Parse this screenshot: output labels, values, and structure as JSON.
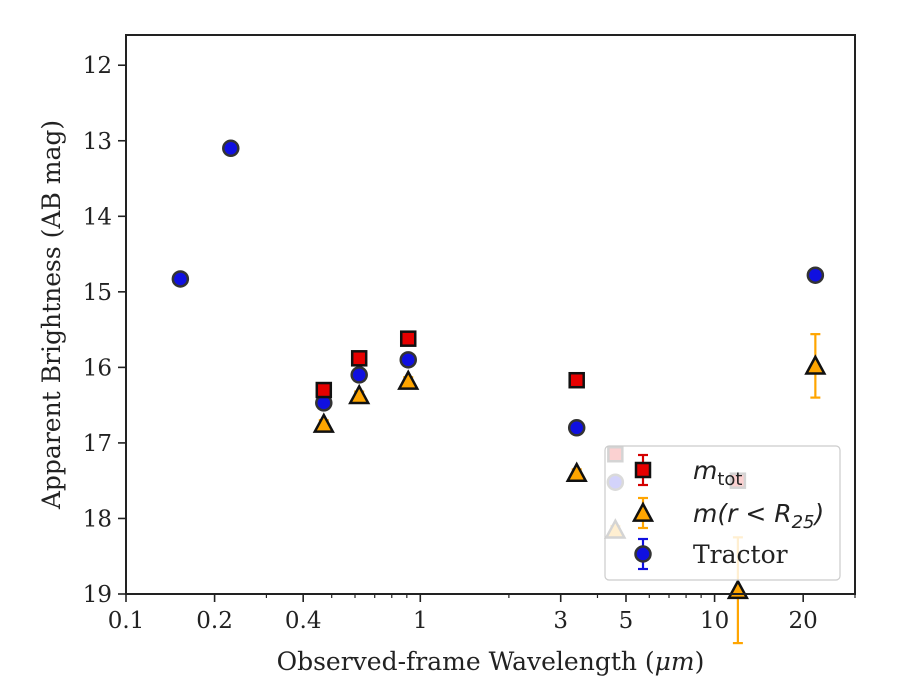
{
  "chart_data": {
    "type": "scatter",
    "title": "",
    "xlabel": "Observed-frame Wavelength (",
    "xlabel_unit": "μm",
    "ylabel": "Apparent Brightness (AB mag)",
    "xscale": "log",
    "xlim": [
      0.1,
      30
    ],
    "ylim": [
      19,
      11.6
    ],
    "y_inverted": true,
    "grid": false,
    "legend_position": "lower-right",
    "x_ticks": [
      {
        "value": 0.1,
        "label": "0.1"
      },
      {
        "value": 0.2,
        "label": "0.2"
      },
      {
        "value": 0.4,
        "label": "0.4"
      },
      {
        "value": 1,
        "label": "1"
      },
      {
        "value": 3,
        "label": "3"
      },
      {
        "value": 5,
        "label": "5"
      },
      {
        "value": 10,
        "label": "10"
      },
      {
        "value": 20,
        "label": "20"
      }
    ],
    "y_ticks": [
      {
        "value": 12,
        "label": "12"
      },
      {
        "value": 13,
        "label": "13"
      },
      {
        "value": 14,
        "label": "14"
      },
      {
        "value": 15,
        "label": "15"
      },
      {
        "value": 16,
        "label": "16"
      },
      {
        "value": 17,
        "label": "17"
      },
      {
        "value": 18,
        "label": "18"
      },
      {
        "value": 19,
        "label": "19"
      }
    ],
    "series": [
      {
        "name": "m_tot",
        "legend_main": "m",
        "legend_sub": "tot",
        "marker": "square",
        "color": "#e60000",
        "error_color": "#d40000",
        "points": [
          {
            "x": 0.47,
            "y": 16.3,
            "err": 0.05
          },
          {
            "x": 0.62,
            "y": 15.88,
            "err": 0.05
          },
          {
            "x": 0.91,
            "y": 15.62,
            "err": 0.05
          },
          {
            "x": 3.4,
            "y": 16.17,
            "err": 0.05
          },
          {
            "x": 4.6,
            "y": 17.15,
            "err": 0.05
          },
          {
            "x": 12,
            "y": 17.5,
            "err": 0.05
          }
        ]
      },
      {
        "name": "m(r<R25)",
        "legend_main": "m(r < R",
        "legend_sub": "25",
        "legend_tail": ")",
        "marker": "triangle",
        "color": "#ffa500",
        "error_color": "#ffa500",
        "points": [
          {
            "x": 0.47,
            "y": 16.75,
            "err": 0.05
          },
          {
            "x": 0.62,
            "y": 16.37,
            "err": 0.05
          },
          {
            "x": 0.91,
            "y": 16.18,
            "err": 0.05
          },
          {
            "x": 3.4,
            "y": 17.4,
            "err": 0.05
          },
          {
            "x": 4.6,
            "y": 18.15,
            "err": 0.05
          },
          {
            "x": 12,
            "y": 18.95,
            "err": 0.7
          },
          {
            "x": 22,
            "y": 15.98,
            "err": 0.42
          }
        ]
      },
      {
        "name": "Tractor",
        "legend_main": "Tractor",
        "marker": "circle",
        "color": "#1010e0",
        "error_color": "#1010e0",
        "points": [
          {
            "x": 0.153,
            "y": 14.83,
            "err": 0.08
          },
          {
            "x": 0.227,
            "y": 13.1,
            "err": 0.08
          },
          {
            "x": 0.47,
            "y": 16.47,
            "err": 0.05
          },
          {
            "x": 0.62,
            "y": 16.1,
            "err": 0.05
          },
          {
            "x": 0.91,
            "y": 15.9,
            "err": 0.05
          },
          {
            "x": 3.4,
            "y": 16.8,
            "err": 0.06
          },
          {
            "x": 4.6,
            "y": 17.52,
            "err": 0.06
          },
          {
            "x": 22,
            "y": 14.78,
            "err": 0.08
          }
        ]
      }
    ],
    "legend_order": [
      0,
      1,
      2
    ]
  }
}
